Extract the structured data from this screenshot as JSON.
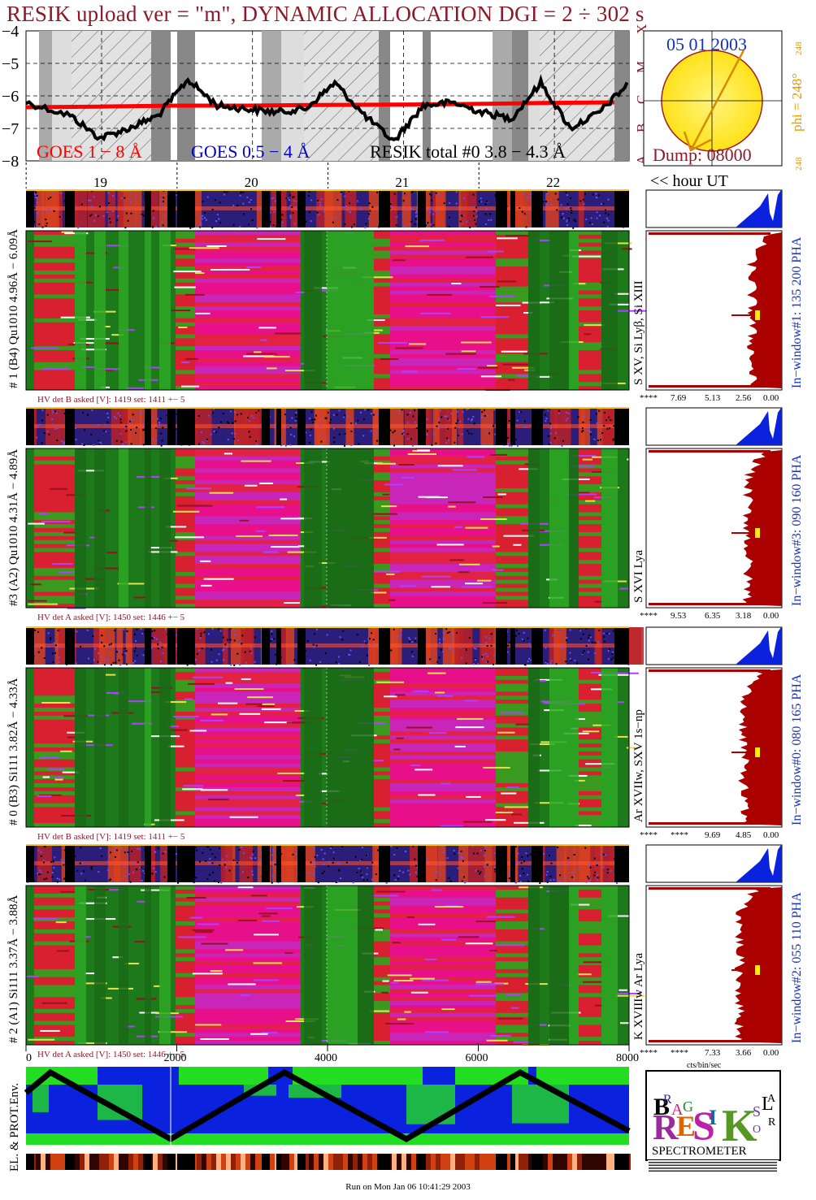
{
  "title": "RESIK upload ver = \"m\", DYNAMIC ALLOCATION  DGI =   2 ÷ 302 s",
  "colors": {
    "title": "#8a1a2a",
    "goes_long": "#ff0000",
    "goes_short": "#0000cc",
    "resik_total": "#000000",
    "sun": "#ffee22",
    "histogram_blue": "#0a22dd",
    "histogram_red": "#aa0000",
    "phi_text": "#e49a00",
    "date_text": "#1530c0"
  },
  "lightcurve": {
    "yaxis_ticks": [
      "−4",
      "−5",
      "−6",
      "−7",
      "−8"
    ],
    "class_labels": [
      "X",
      "M",
      "C",
      "B",
      "A"
    ],
    "legend": {
      "goes_long": "GOES 1 − 8 Å",
      "goes_short": "GOES 0.5 − 4 Å",
      "resik": "RESIK total #0  3.8 − 4.3 Å"
    },
    "hour_ticks": [
      "19",
      "20",
      "21",
      "22"
    ],
    "hour_label": "<< hour UT"
  },
  "sun_panel": {
    "date": "05 01 2003",
    "dump": "Dump: 08000",
    "phi_label": "phi = 248°",
    "phi_small_top": "248",
    "phi_small_bottom": "248"
  },
  "detectors": [
    {
      "label": "# 1 (B4) Qu1010 4.96Å − 6.09Å",
      "lines": "S XV, Si Lyβ, Si XIII",
      "window": "In−window#1:  135 200 PHA",
      "hv": "HV det B asked [V]:  1419 set:  1411  +−    5",
      "hist_ticks": [
        "****",
        "7.69",
        "5.13",
        "2.56",
        "0.00"
      ]
    },
    {
      "label": "#3 (A2) Qu1010  4.31Å − 4.89Å",
      "lines": "S XVI Lya",
      "window": "In−window#3:  090 160 PHA",
      "hv": "HV det A asked [V]:  1450 set:  1446  +−    5",
      "hist_ticks": [
        "****",
        "9.53",
        "6.35",
        "3.18",
        "0.00"
      ]
    },
    {
      "label": "# 0 (B3) Si111  3.82Å − 4.33Å",
      "lines": "Ar XVIIw,  SXV 1s−np",
      "window": "In−window#0:  080 165 PHA",
      "hv": "HV det B asked [V]:  1419 set:  1411  +−    5",
      "hist_ticks": [
        "****",
        "****",
        "9.69",
        "4.85",
        "0.00"
      ]
    },
    {
      "label": "# 2 (A1) Si111  3.37Å − 3.88Å",
      "lines": "K XVIIIw  Ar Lya",
      "window": "In−window#2:  055 110 PHA",
      "hv": "HV det A asked [V]:  1450 set:  1446  +−    5",
      "hist_ticks": [
        "****",
        "****",
        "7.33",
        "3.66",
        "0.00"
      ]
    }
  ],
  "bottom_axis": {
    "ticks": [
      "0",
      "2000",
      "4000",
      "6000",
      "8000"
    ],
    "unit": "cts/bin/sec"
  },
  "env_label": "EL. & PROT.Env.",
  "logo": {
    "text": "RESIK",
    "subtitle": "SPECTROMETER",
    "letters": [
      "B",
      "R",
      "A",
      "G",
      "S",
      "O",
      "L",
      "A",
      "R"
    ]
  },
  "footer": "Run on Mon Jan 06 10:41:29 2003",
  "chart_data": [
    {
      "type": "line",
      "title": "RESIK upload ver = \"m\", DYNAMIC ALLOCATION  DGI =   2 ÷ 302 s",
      "xlabel": "<< hour UT",
      "ylabel": "",
      "x_ticks": [
        "19",
        "20",
        "21",
        "22"
      ],
      "ylim": [
        -8,
        -4
      ],
      "series": [
        {
          "name": "GOES 1 − 8 Å",
          "x": [
            18.5,
            19.0,
            19.5,
            20.0,
            20.5,
            21.0,
            21.5,
            22.0,
            22.5
          ],
          "values": [
            -6.35,
            -6.33,
            -6.3,
            -6.3,
            -6.28,
            -6.27,
            -6.25,
            -6.22,
            -6.2
          ]
        },
        {
          "name": "RESIK total #0  3.8 − 4.3 Å",
          "x": [
            18.5,
            18.8,
            19.0,
            19.2,
            19.4,
            19.6,
            19.8,
            20.0,
            20.2,
            20.4,
            20.6,
            20.8,
            21.0,
            21.2,
            21.4,
            21.6,
            21.8,
            22.0,
            22.2,
            22.4,
            22.6
          ],
          "values": [
            -6.2,
            -6.6,
            -7.3,
            -7.0,
            -6.6,
            -5.5,
            -6.3,
            -6.4,
            -6.5,
            -6.4,
            -5.6,
            -6.6,
            -7.4,
            -6.3,
            -6.2,
            -6.5,
            -6.7,
            -5.6,
            -7.0,
            -6.5,
            -5.6
          ]
        }
      ]
    },
    {
      "type": "bar",
      "title": "In−window#1:  135 200 PHA",
      "xlabel": "",
      "ylabel": "",
      "x_ticks": [
        "****",
        "7.69",
        "5.13",
        "2.56",
        "0.00"
      ]
    },
    {
      "type": "bar",
      "title": "In−window#3:  090 160 PHA",
      "xlabel": "",
      "ylabel": "",
      "x_ticks": [
        "****",
        "9.53",
        "6.35",
        "3.18",
        "0.00"
      ]
    },
    {
      "type": "bar",
      "title": "In−window#0:  080 165 PHA",
      "xlabel": "",
      "ylabel": "",
      "x_ticks": [
        "****",
        "****",
        "9.69",
        "4.85",
        "0.00"
      ]
    },
    {
      "type": "bar",
      "title": "In−window#2:  055 110 PHA",
      "xlabel": "cts/bin/sec",
      "ylabel": "",
      "x_ticks": [
        "****",
        "****",
        "7.33",
        "3.66",
        "0.00"
      ]
    }
  ]
}
